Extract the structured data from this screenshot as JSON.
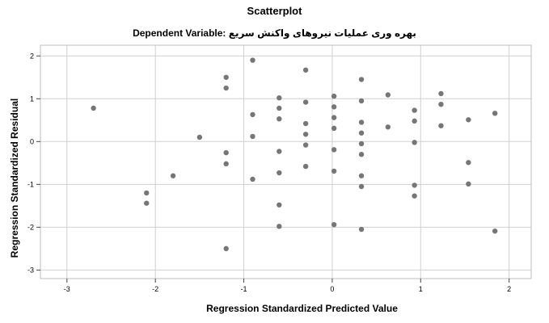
{
  "chart_data": {
    "type": "scatter",
    "title": "Scatterplot",
    "subtitle": "Dependent Variable: بهره وری عملیات نیروهای واکنش سریع",
    "xlabel": "Regression Standardized Predicted Value",
    "ylabel": "Regression Standardized Residual",
    "xlim": [
      -3.3,
      2.25
    ],
    "ylim": [
      -3.2,
      2.25
    ],
    "xticks": [
      -3,
      -2,
      -1,
      0,
      1,
      2
    ],
    "yticks": [
      -3,
      -2,
      -1,
      0,
      1,
      2
    ],
    "xtick_labels": [
      "-3",
      "-2",
      "-1",
      "0",
      "1",
      "2"
    ],
    "ytick_labels": [
      "-3",
      "-2",
      "-1",
      "0",
      "1",
      "2"
    ],
    "grid": true,
    "marker_color": "#767676",
    "gridline_color": "#d0d0d0",
    "points": [
      {
        "x": -2.7,
        "y": 0.78
      },
      {
        "x": -2.1,
        "y": -1.2
      },
      {
        "x": -2.1,
        "y": -1.44
      },
      {
        "x": -1.8,
        "y": -0.8
      },
      {
        "x": -1.5,
        "y": 0.1
      },
      {
        "x": -1.2,
        "y": 1.5
      },
      {
        "x": -1.2,
        "y": 1.25
      },
      {
        "x": -1.2,
        "y": -0.26
      },
      {
        "x": -1.2,
        "y": -0.52
      },
      {
        "x": -1.2,
        "y": -2.5
      },
      {
        "x": -0.9,
        "y": 1.9
      },
      {
        "x": -0.9,
        "y": 0.63
      },
      {
        "x": -0.9,
        "y": 0.12
      },
      {
        "x": -0.9,
        "y": -0.88
      },
      {
        "x": -0.6,
        "y": 1.02
      },
      {
        "x": -0.6,
        "y": 0.78
      },
      {
        "x": -0.6,
        "y": 0.53
      },
      {
        "x": -0.6,
        "y": -0.23
      },
      {
        "x": -0.6,
        "y": -0.73
      },
      {
        "x": -0.6,
        "y": -1.48
      },
      {
        "x": -0.6,
        "y": -1.98
      },
      {
        "x": -0.3,
        "y": 1.67
      },
      {
        "x": -0.3,
        "y": 0.92
      },
      {
        "x": -0.3,
        "y": 0.42
      },
      {
        "x": -0.3,
        "y": 0.17
      },
      {
        "x": -0.3,
        "y": -0.08
      },
      {
        "x": -0.3,
        "y": -0.58
      },
      {
        "x": 0.02,
        "y": 1.06
      },
      {
        "x": 0.02,
        "y": 0.81
      },
      {
        "x": 0.02,
        "y": 0.56
      },
      {
        "x": 0.02,
        "y": 0.31
      },
      {
        "x": 0.02,
        "y": -0.19
      },
      {
        "x": 0.02,
        "y": -0.69
      },
      {
        "x": 0.02,
        "y": -1.94
      },
      {
        "x": 0.33,
        "y": 1.45
      },
      {
        "x": 0.33,
        "y": 0.95
      },
      {
        "x": 0.33,
        "y": 0.45
      },
      {
        "x": 0.33,
        "y": 0.2
      },
      {
        "x": 0.33,
        "y": -0.05
      },
      {
        "x": 0.33,
        "y": -0.3
      },
      {
        "x": 0.33,
        "y": -0.8
      },
      {
        "x": 0.33,
        "y": -1.05
      },
      {
        "x": 0.33,
        "y": -2.05
      },
      {
        "x": 0.63,
        "y": 1.09
      },
      {
        "x": 0.63,
        "y": 0.34
      },
      {
        "x": 0.93,
        "y": 0.73
      },
      {
        "x": 0.93,
        "y": 0.48
      },
      {
        "x": 0.93,
        "y": -0.02
      },
      {
        "x": 0.93,
        "y": -1.02
      },
      {
        "x": 0.93,
        "y": -1.27
      },
      {
        "x": 1.23,
        "y": 1.12
      },
      {
        "x": 1.23,
        "y": 0.87
      },
      {
        "x": 1.23,
        "y": 0.37
      },
      {
        "x": 1.54,
        "y": 0.51
      },
      {
        "x": 1.54,
        "y": -0.49
      },
      {
        "x": 1.54,
        "y": -0.99
      },
      {
        "x": 1.84,
        "y": 0.66
      },
      {
        "x": 1.84,
        "y": -2.09
      }
    ]
  }
}
